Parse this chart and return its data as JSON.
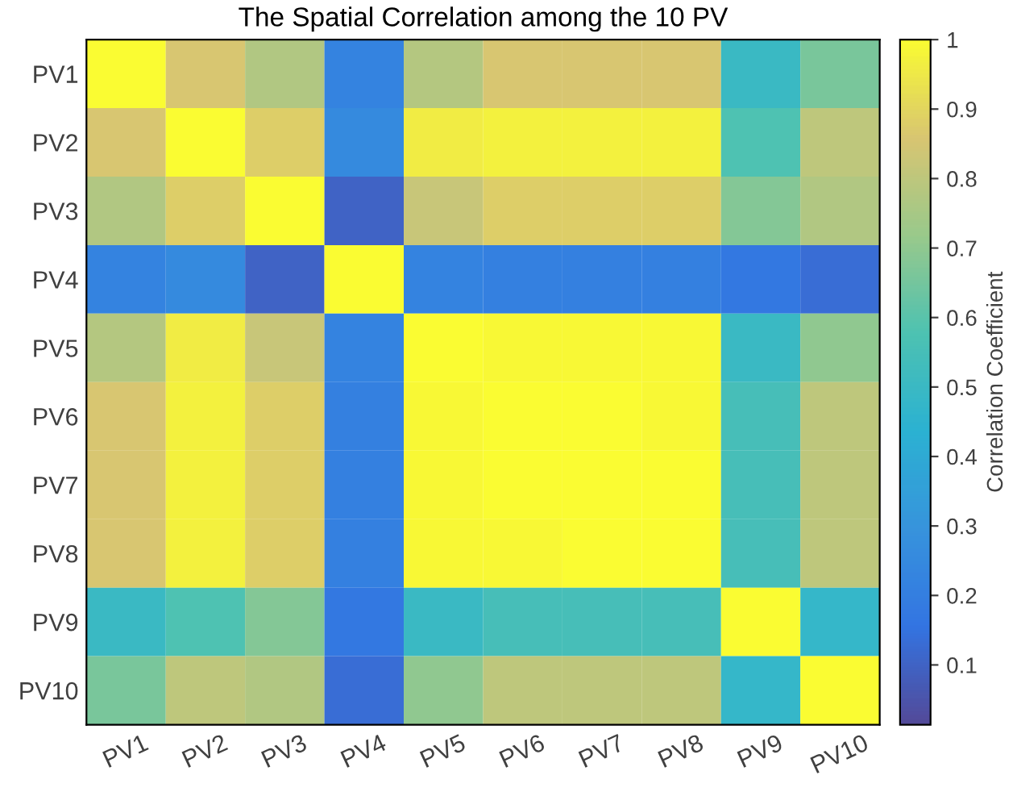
{
  "chart_data": {
    "type": "heatmap",
    "title": "The Spatial Correlation among the 10 PV",
    "clabel": "Correlation Coefficient",
    "categories": [
      "PV1",
      "PV2",
      "PV3",
      "PV4",
      "PV5",
      "PV6",
      "PV7",
      "PV8",
      "PV9",
      "PV10"
    ],
    "y_categories": [
      "PV1",
      "PV2",
      "PV3",
      "PV4",
      "PV5",
      "PV6",
      "PV7",
      "PV8",
      "PV9",
      "PV10"
    ],
    "cells": [
      [
        1,
        0.86,
        0.77,
        0.22,
        0.78,
        0.86,
        0.86,
        0.86,
        0.5,
        0.66
      ],
      [
        0.86,
        1,
        0.88,
        0.25,
        0.96,
        0.97,
        0.97,
        0.97,
        0.58,
        0.8
      ],
      [
        0.77,
        0.88,
        1,
        0.1,
        0.82,
        0.88,
        0.88,
        0.88,
        0.68,
        0.77
      ],
      [
        0.22,
        0.25,
        0.1,
        1,
        0.22,
        0.21,
        0.21,
        0.21,
        0.17,
        0.13
      ],
      [
        0.78,
        0.96,
        0.82,
        0.22,
        1,
        0.99,
        0.99,
        0.99,
        0.5,
        0.7
      ],
      [
        0.86,
        0.97,
        0.88,
        0.21,
        0.99,
        1,
        1,
        0.99,
        0.55,
        0.8
      ],
      [
        0.86,
        0.97,
        0.88,
        0.21,
        0.99,
        1,
        1,
        1,
        0.55,
        0.8
      ],
      [
        0.86,
        0.97,
        0.88,
        0.21,
        0.99,
        0.99,
        1,
        1,
        0.55,
        0.8
      ],
      [
        0.5,
        0.58,
        0.68,
        0.17,
        0.5,
        0.55,
        0.55,
        0.55,
        1,
        0.48
      ],
      [
        0.66,
        0.8,
        0.77,
        0.13,
        0.7,
        0.8,
        0.8,
        0.8,
        0.48,
        1
      ]
    ],
    "clim": [
      0.014,
      1
    ],
    "cticks": [
      0.1,
      0.2,
      0.3,
      0.4,
      0.5,
      0.6,
      0.7,
      0.8,
      0.9,
      1
    ],
    "colors": [
      "#352a87",
      "#0f5cdd",
      "#1481d6",
      "#06a4ca",
      "#2eb7a4",
      "#87bf77",
      "#d1bb59",
      "#f9fb0e"
    ]
  }
}
